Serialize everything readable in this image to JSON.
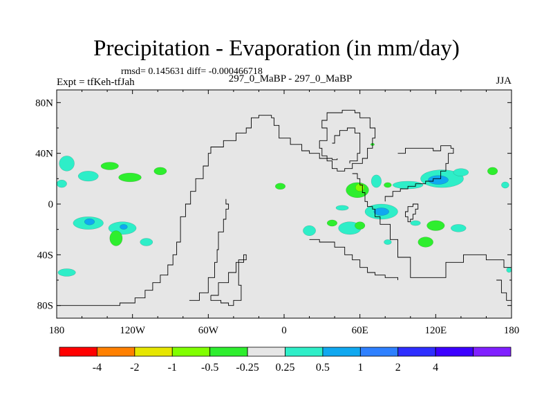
{
  "header": {
    "title": "Precipitation - Evaporation (in mm/day)",
    "stats": "rmsd= 0.145631 diff= -0.000466718",
    "expt": "Expt = tfKeh-tfJah",
    "subtitle": "297_0_MaBP - 297_0_MaBP",
    "season": "JJA"
  },
  "chart_data": {
    "type": "heatmap",
    "title": "Precipitation - Evaporation (in mm/day)",
    "xlabel": "",
    "ylabel": "",
    "xlim": [
      -180,
      180
    ],
    "ylim": [
      -90,
      90
    ],
    "x_ticks": [
      {
        "value": -180,
        "label": "180"
      },
      {
        "value": -120,
        "label": "120W"
      },
      {
        "value": -60,
        "label": "60W"
      },
      {
        "value": 0,
        "label": "0"
      },
      {
        "value": 60,
        "label": "60E"
      },
      {
        "value": 120,
        "label": "120E"
      },
      {
        "value": 180,
        "label": "180"
      }
    ],
    "y_ticks": [
      {
        "value": 80,
        "label": "80N"
      },
      {
        "value": 40,
        "label": "40N"
      },
      {
        "value": 0,
        "label": "0"
      },
      {
        "value": -40,
        "label": "40S"
      },
      {
        "value": -80,
        "label": "80S"
      }
    ],
    "background_color": "#e6e6e6",
    "colorbar": {
      "colors": [
        "#ff0000",
        "#ff8000",
        "#e6e600",
        "#80ff00",
        "#2eee2e",
        "#e6e6e6",
        "#2eeec8",
        "#10a8f0",
        "#2e80ff",
        "#2e2eff",
        "#3c00ff",
        "#8020ff"
      ],
      "labels": [
        "-4",
        "-2",
        "-1",
        "-0.5",
        "-0.25",
        "0.25",
        "0.5",
        "1",
        "2",
        "4"
      ]
    },
    "anomaly_patches": [
      {
        "lon": -172,
        "lat": 32,
        "rx": 6,
        "ry": 6,
        "level": "0.5"
      },
      {
        "lon": -176,
        "lat": 16,
        "rx": 4,
        "ry": 3,
        "level": "0.5"
      },
      {
        "lon": -155,
        "lat": 22,
        "rx": 8,
        "ry": 4,
        "level": "0.5"
      },
      {
        "lon": -138,
        "lat": 30,
        "rx": 7,
        "ry": 3,
        "level": "-0.25"
      },
      {
        "lon": -122,
        "lat": 21,
        "rx": 9,
        "ry": 3.5,
        "level": "-0.25"
      },
      {
        "lon": -98,
        "lat": 26,
        "rx": 5,
        "ry": 3,
        "level": "-0.25"
      },
      {
        "lon": -155,
        "lat": -15,
        "rx": 12,
        "ry": 5,
        "level": "0.5"
      },
      {
        "lon": -154,
        "lat": -14,
        "rx": 4,
        "ry": 2.5,
        "level": "1"
      },
      {
        "lon": -128,
        "lat": -19,
        "rx": 11,
        "ry": 5,
        "level": "0.5"
      },
      {
        "lon": -127,
        "lat": -18,
        "rx": 3,
        "ry": 2,
        "level": "1"
      },
      {
        "lon": -133,
        "lat": -27,
        "rx": 5,
        "ry": 6,
        "level": "-0.25"
      },
      {
        "lon": -109,
        "lat": -30,
        "rx": 5,
        "ry": 3,
        "level": "0.5"
      },
      {
        "lon": -172,
        "lat": -54,
        "rx": 7,
        "ry": 3,
        "level": "0.5"
      },
      {
        "lon": -3,
        "lat": 14,
        "rx": 4,
        "ry": 2.5,
        "level": "-0.25"
      },
      {
        "lon": 58,
        "lat": 11,
        "rx": 9,
        "ry": 6,
        "level": "-0.25"
      },
      {
        "lon": 60,
        "lat": 13,
        "rx": 3.5,
        "ry": 3,
        "level": "-0.5"
      },
      {
        "lon": 73,
        "lat": 18,
        "rx": 4,
        "ry": 5,
        "level": "0.5"
      },
      {
        "lon": 82,
        "lat": 15,
        "rx": 3,
        "ry": 2,
        "level": "-0.25"
      },
      {
        "lon": 98,
        "lat": 15,
        "rx": 12,
        "ry": 3,
        "level": "0.5"
      },
      {
        "lon": 125,
        "lat": 20,
        "rx": 17,
        "ry": 7,
        "level": "0.5"
      },
      {
        "lon": 122,
        "lat": 19,
        "rx": 8,
        "ry": 3.5,
        "level": "1"
      },
      {
        "lon": 140,
        "lat": 25,
        "rx": 6,
        "ry": 3,
        "level": "0.5"
      },
      {
        "lon": 165,
        "lat": 26,
        "rx": 4,
        "ry": 3,
        "level": "-0.25"
      },
      {
        "lon": 175,
        "lat": 15,
        "rx": 3,
        "ry": 2.5,
        "level": "0.5"
      },
      {
        "lon": 46,
        "lat": -3,
        "rx": 5,
        "ry": 2,
        "level": "0.5"
      },
      {
        "lon": 77,
        "lat": -6,
        "rx": 13,
        "ry": 6,
        "level": "0.5"
      },
      {
        "lon": 77,
        "lat": -6,
        "rx": 6,
        "ry": 3,
        "level": "1"
      },
      {
        "lon": 38,
        "lat": -15,
        "rx": 4,
        "ry": 2.5,
        "level": "-0.25"
      },
      {
        "lon": 52,
        "lat": -19,
        "rx": 9,
        "ry": 5,
        "level": "0.5"
      },
      {
        "lon": 60,
        "lat": -17,
        "rx": 4,
        "ry": 3,
        "level": "-0.25"
      },
      {
        "lon": 20,
        "lat": -21,
        "rx": 5,
        "ry": 4,
        "level": "0.5"
      },
      {
        "lon": 82,
        "lat": -30,
        "rx": 3,
        "ry": 2,
        "level": "0.5"
      },
      {
        "lon": 104,
        "lat": -15,
        "rx": 4,
        "ry": 2,
        "level": "0.5"
      },
      {
        "lon": 120,
        "lat": -17,
        "rx": 7,
        "ry": 4,
        "level": "-0.25"
      },
      {
        "lon": 138,
        "lat": -19,
        "rx": 6,
        "ry": 3,
        "level": "0.5"
      },
      {
        "lon": 112,
        "lat": -30,
        "rx": 6,
        "ry": 4,
        "level": "-0.25"
      },
      {
        "lon": 178,
        "lat": -52,
        "rx": 2,
        "ry": 2,
        "level": "0.5"
      },
      {
        "lon": 70,
        "lat": 47,
        "rx": 1.5,
        "ry": 1,
        "level": "-0.25"
      }
    ],
    "continent_outlines": [
      {
        "name": "americas",
        "points": [
          [
            -180,
            -80
          ],
          [
            -145,
            -80
          ],
          [
            -130,
            -78
          ],
          [
            -118,
            -74
          ],
          [
            -110,
            -68
          ],
          [
            -104,
            -62
          ],
          [
            -98,
            -56
          ],
          [
            -92,
            -48
          ],
          [
            -88,
            -40
          ],
          [
            -85,
            -30
          ],
          [
            -82,
            -20
          ],
          [
            -82,
            -10
          ],
          [
            -78,
            0
          ],
          [
            -74,
            10
          ],
          [
            -70,
            20
          ],
          [
            -64,
            30
          ],
          [
            -60,
            40
          ],
          [
            -58,
            45
          ],
          [
            -48,
            50
          ],
          [
            -38,
            56
          ],
          [
            -30,
            60
          ],
          [
            -26,
            68
          ],
          [
            -20,
            70
          ],
          [
            -10,
            68
          ],
          [
            -8,
            62
          ],
          [
            -4,
            52
          ],
          [
            5,
            47
          ],
          [
            14,
            42
          ],
          [
            20,
            40
          ],
          [
            28,
            36
          ],
          [
            38,
            35
          ],
          [
            42,
            36
          ]
        ]
      },
      {
        "name": "americas-inner",
        "points": [
          [
            -75,
            -76
          ],
          [
            -67,
            -70
          ],
          [
            -60,
            -58
          ],
          [
            -55,
            -46
          ],
          [
            -53,
            -36
          ],
          [
            -52,
            -22
          ],
          [
            -48,
            -12
          ],
          [
            -46,
            -4
          ],
          [
            -44,
            0
          ],
          [
            -46,
            4
          ]
        ]
      },
      {
        "name": "south-tip",
        "points": [
          [
            -58,
            -72
          ],
          [
            -52,
            -62
          ],
          [
            -44,
            -54
          ],
          [
            -38,
            -46
          ],
          [
            -32,
            -40
          ],
          [
            -30,
            -44
          ],
          [
            -36,
            -54
          ],
          [
            -36,
            -64
          ],
          [
            -34,
            -76
          ],
          [
            -40,
            -80
          ],
          [
            -44,
            -78
          ],
          [
            -50,
            -76
          ],
          [
            -58,
            -72
          ]
        ]
      },
      {
        "name": "greenland",
        "points": [
          [
            28,
            50
          ],
          [
            34,
            60
          ],
          [
            30,
            66
          ],
          [
            34,
            72
          ],
          [
            46,
            74
          ],
          [
            56,
            72
          ],
          [
            60,
            68
          ],
          [
            68,
            60
          ],
          [
            72,
            52
          ],
          [
            70,
            44
          ],
          [
            66,
            36
          ],
          [
            62,
            32
          ],
          [
            54,
            28
          ],
          [
            48,
            26
          ],
          [
            42,
            28
          ],
          [
            38,
            34
          ],
          [
            34,
            38
          ],
          [
            30,
            44
          ],
          [
            28,
            50
          ]
        ]
      },
      {
        "name": "greenland-inner",
        "points": [
          [
            38,
            48
          ],
          [
            40,
            54
          ],
          [
            44,
            58
          ],
          [
            50,
            60
          ],
          [
            56,
            56
          ],
          [
            60,
            48
          ],
          [
            60,
            40
          ],
          [
            58,
            34
          ],
          [
            52,
            32
          ]
        ]
      },
      {
        "name": "africa",
        "points": [
          [
            54,
            24
          ],
          [
            58,
            20
          ],
          [
            60,
            15
          ],
          [
            62,
            9
          ],
          [
            64,
            2
          ],
          [
            66,
            -2
          ],
          [
            70,
            -4
          ],
          [
            72,
            -10
          ],
          [
            76,
            -16
          ],
          [
            84,
            -28
          ],
          [
            90,
            -42
          ],
          [
            100,
            -58
          ],
          [
            118,
            -58
          ],
          [
            128,
            -46
          ],
          [
            142,
            -40
          ],
          [
            160,
            -44
          ],
          [
            174,
            -50
          ],
          [
            180,
            -52
          ]
        ]
      },
      {
        "name": "africa-west",
        "points": [
          [
            20,
            -28
          ],
          [
            28,
            -30
          ],
          [
            40,
            -34
          ],
          [
            48,
            -40
          ],
          [
            54,
            -44
          ],
          [
            60,
            -50
          ],
          [
            66,
            -54
          ],
          [
            72,
            -56
          ],
          [
            80,
            -58
          ],
          [
            90,
            -60
          ]
        ]
      },
      {
        "name": "asia",
        "points": [
          [
            90,
            40
          ],
          [
            96,
            44
          ],
          [
            106,
            44
          ],
          [
            118,
            42
          ],
          [
            124,
            46
          ],
          [
            132,
            44
          ],
          [
            134,
            40
          ],
          [
            130,
            32
          ],
          [
            128,
            26
          ],
          [
            124,
            20
          ],
          [
            118,
            18
          ],
          [
            112,
            16
          ],
          [
            104,
            14
          ],
          [
            98,
            12
          ],
          [
            92,
            10
          ],
          [
            86,
            6
          ],
          [
            80,
            2
          ]
        ]
      },
      {
        "name": "india",
        "points": [
          [
            104,
            0
          ],
          [
            106,
            -4
          ],
          [
            104,
            -8
          ],
          [
            102,
            -12
          ],
          [
            100,
            -14
          ],
          [
            98,
            -10
          ],
          [
            96,
            -6
          ],
          [
            98,
            -2
          ],
          [
            102,
            0
          ],
          [
            104,
            0
          ]
        ]
      },
      {
        "name": "east",
        "points": [
          [
            168,
            -60
          ],
          [
            172,
            -70
          ],
          [
            176,
            -76
          ],
          [
            180,
            -80
          ]
        ]
      }
    ]
  }
}
